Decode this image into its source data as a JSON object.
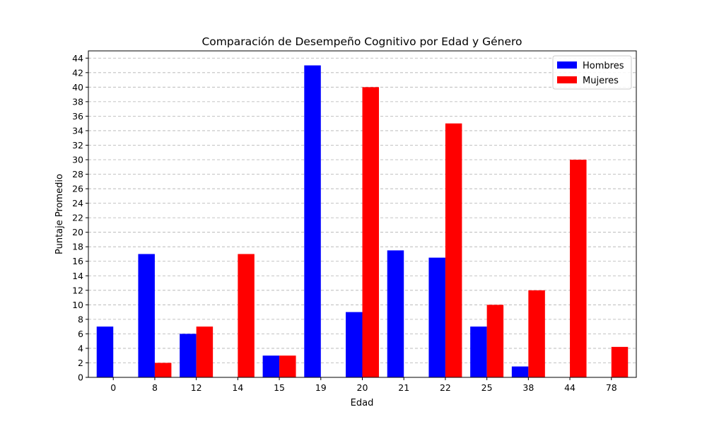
{
  "chart_data": {
    "type": "bar",
    "title": "Comparación de Desempeño Cognitivo por Edad y Género",
    "xlabel": "Edad",
    "ylabel": "Puntaje Promedio",
    "categories": [
      "0",
      "8",
      "12",
      "14",
      "15",
      "19",
      "20",
      "21",
      "22",
      "25",
      "38",
      "44",
      "78"
    ],
    "series": [
      {
        "name": "Hombres",
        "color": "#0000ff",
        "values": [
          7,
          17,
          6,
          0,
          3,
          43,
          9,
          17.5,
          16.5,
          7,
          1.5,
          0,
          0
        ]
      },
      {
        "name": "Mujeres",
        "color": "#ff0000",
        "values": [
          0,
          2,
          7,
          17,
          3,
          0,
          40,
          0,
          35,
          10,
          12,
          30,
          4.2
        ]
      }
    ],
    "ylim": [
      0,
      45
    ],
    "yticks": [
      0,
      2,
      4,
      6,
      8,
      10,
      12,
      14,
      16,
      18,
      20,
      22,
      24,
      26,
      28,
      30,
      32,
      34,
      36,
      38,
      40,
      42,
      44
    ],
    "grid": true,
    "grid_axis": "y",
    "legend_position": "top-right"
  }
}
